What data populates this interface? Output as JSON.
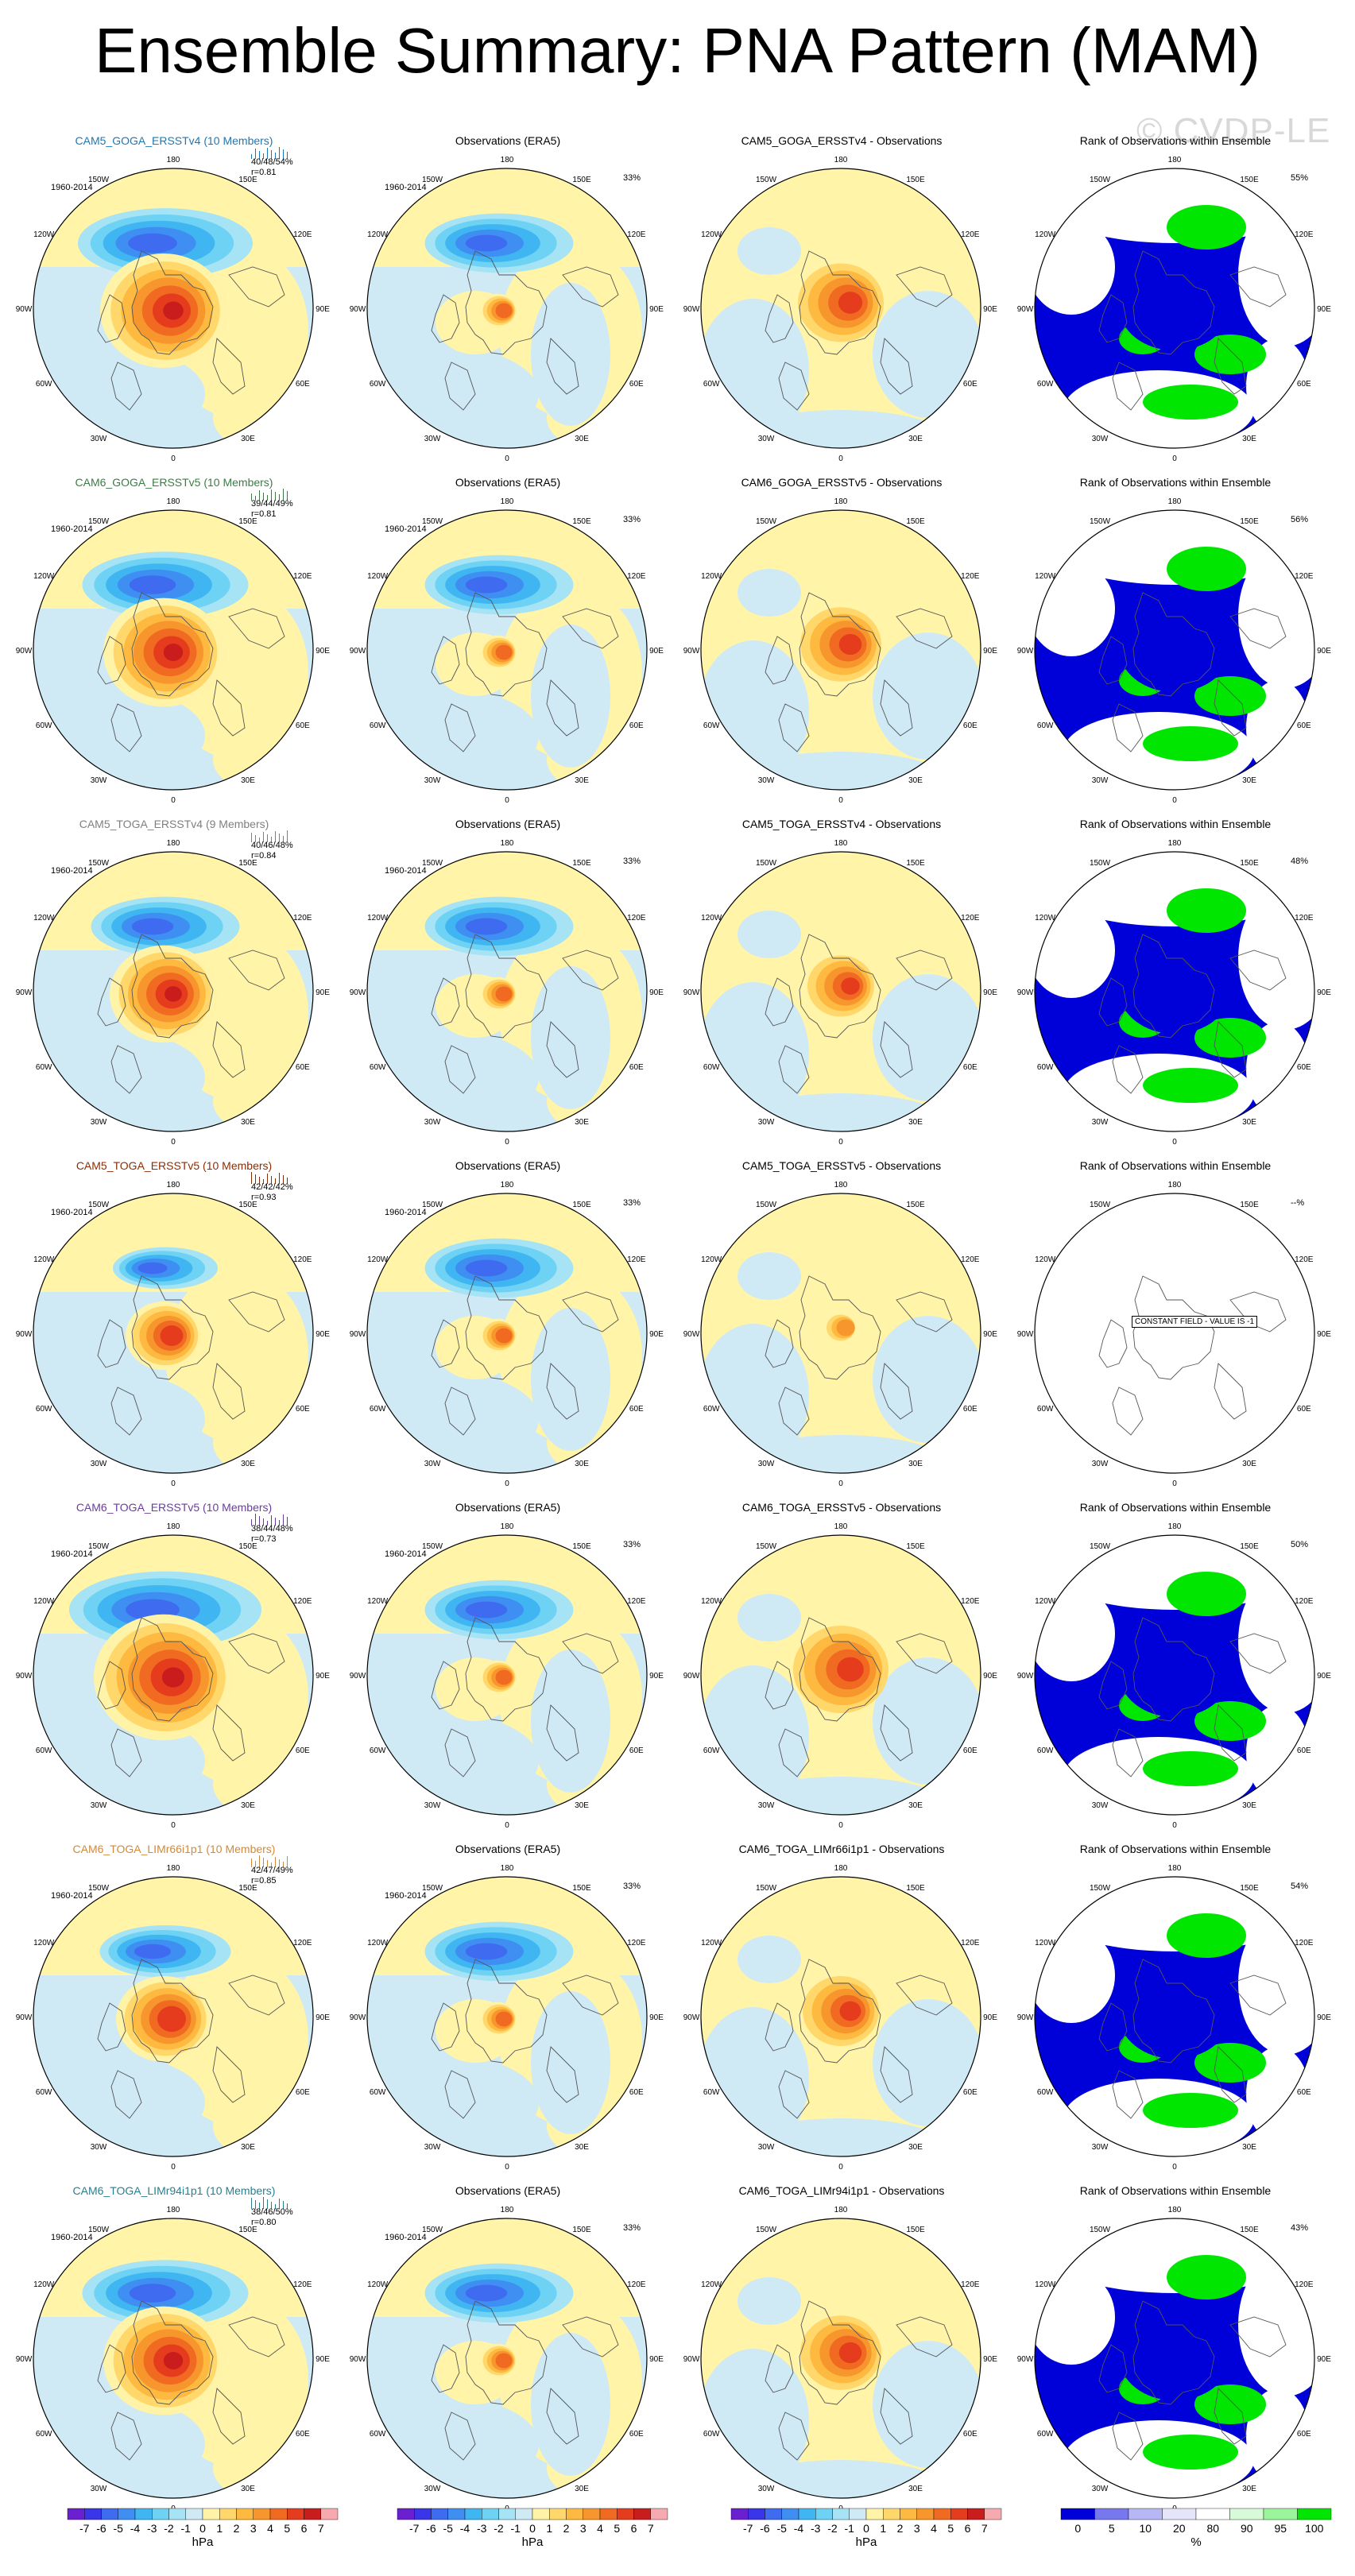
{
  "title": "Ensemble Summary: PNA Pattern (MAM)",
  "watermark": "© CVDP-LE",
  "period": "1960-2014",
  "obs_title": "Observations (ERA5)",
  "obs_pct": "33%",
  "rank_title": "Rank of Observations within Ensemble",
  "constant_field_label": "CONSTANT FIELD - VALUE IS -1",
  "longitude_labels": [
    "180",
    "150E",
    "120E",
    "90E",
    "60E",
    "30E",
    "0",
    "30W",
    "60W",
    "90W",
    "120W",
    "150W"
  ],
  "rows": [
    {
      "model": "CAM5_GOGA_ERSSTv4 (10 Members)",
      "model_color": "#1f77b4",
      "stats": "40/48/54%",
      "corr": "r=0.81",
      "diff_title": "CAM5_GOGA_ERSSTv4 - Observations",
      "rank_pct": "55%"
    },
    {
      "model": "CAM6_GOGA_ERSSTv5 (10 Members)",
      "model_color": "#3a7d44",
      "stats": "39/44/49%",
      "corr": "r=0.81",
      "diff_title": "CAM6_GOGA_ERSSTv5 - Observations",
      "rank_pct": "56%"
    },
    {
      "model": "CAM5_TOGA_ERSSTv4 (9 Members)",
      "model_color": "#7f7f7f",
      "stats": "40/46/48%",
      "corr": "r=0.84",
      "diff_title": "CAM5_TOGA_ERSSTv4 - Observations",
      "rank_pct": "48%"
    },
    {
      "model": "CAM5_TOGA_ERSSTv5 (10 Members)",
      "model_color": "#8c2d04",
      "stats": "42/42/42%",
      "corr": "r=0.93",
      "diff_title": "CAM5_TOGA_ERSSTv5 - Observations",
      "rank_pct": "--%"
    },
    {
      "model": "CAM6_TOGA_ERSSTv5 (10 Members)",
      "model_color": "#6a3d9a",
      "stats": "38/44/48%",
      "corr": "r=0.73",
      "diff_title": "CAM6_TOGA_ERSSTv5 - Observations",
      "rank_pct": "50%"
    },
    {
      "model": "CAM6_TOGA_LIMr66i1p1 (10 Members)",
      "model_color": "#d08a3c",
      "stats": "42/47/49%",
      "corr": "r=0.85",
      "diff_title": "CAM6_TOGA_LIMr66i1p1 - Observations",
      "rank_pct": "54%"
    },
    {
      "model": "CAM6_TOGA_LIMr94i1p1 (10 Members)",
      "model_color": "#2a7f8f",
      "stats": "38/46/50%",
      "corr": "r=0.80",
      "diff_title": "CAM6_TOGA_LIMr94i1p1 - Observations",
      "rank_pct": "43%"
    }
  ],
  "colorbar_hpa": {
    "units": "hPa",
    "tick_labels": [
      "-7",
      "-6",
      "-5",
      "-4",
      "-3",
      "-2",
      "-1",
      "0",
      "1",
      "2",
      "3",
      "4",
      "5",
      "6",
      "7"
    ],
    "colors": [
      "#6a1fd1",
      "#3a35e8",
      "#3f6bf0",
      "#3f8ff2",
      "#3fb5f2",
      "#6dd2f4",
      "#a5e3f5",
      "#cfeaf5",
      "#fff3a8",
      "#ffd76a",
      "#fdb940",
      "#f8962e",
      "#f06a22",
      "#e53c1e",
      "#c91c1c",
      "#f6aab0"
    ]
  },
  "colorbar_rank": {
    "units": "%",
    "tick_labels": [
      "0",
      "5",
      "10",
      "20",
      "80",
      "90",
      "95",
      "100"
    ],
    "colors": [
      "#0000d8",
      "#7777ee",
      "#b7b7f5",
      "#e5e5fa",
      "#ffffff",
      "#d8fad8",
      "#9bf59b",
      "#00e600"
    ]
  },
  "icons": {
    "coastline": "coastline-icon",
    "taylor": "taylor-bars-icon"
  }
}
